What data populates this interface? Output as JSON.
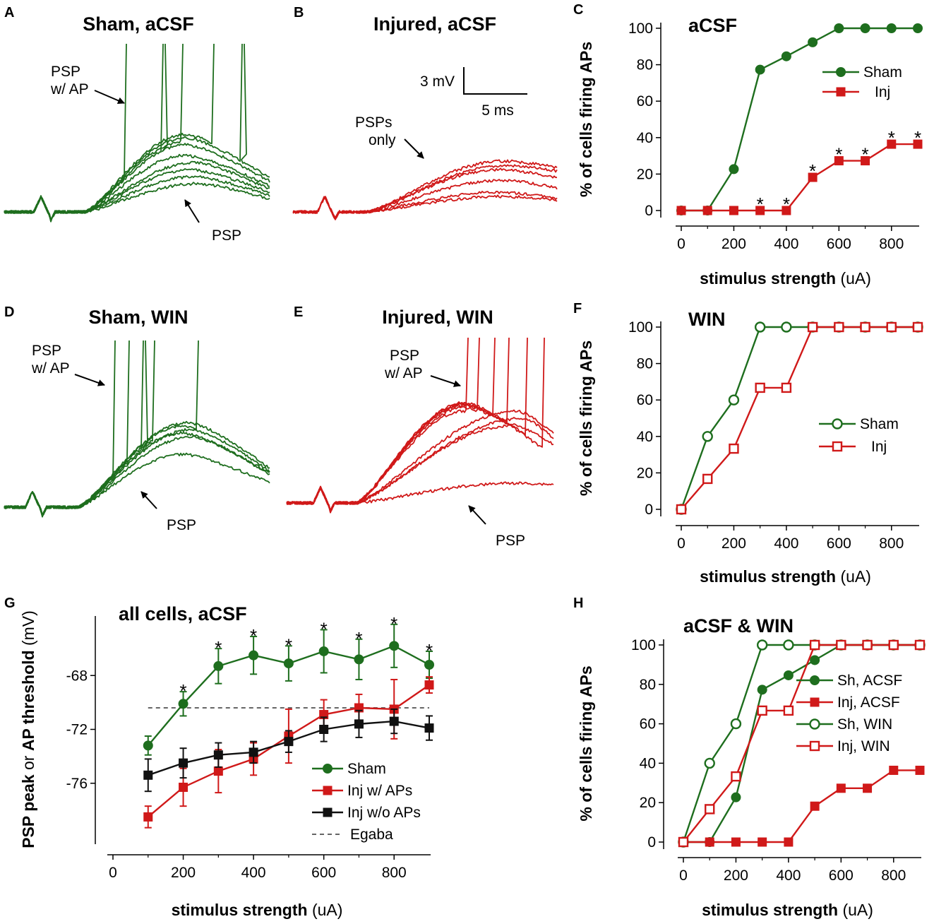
{
  "colors": {
    "sham": "#1e6e1e",
    "inj": "#d01919",
    "inj_no_ap": "#111111",
    "egaba": "#666666"
  },
  "chart_data": [
    {
      "id": "C",
      "type": "line",
      "panel_label": "C",
      "title": "aCSF",
      "xlabel_bold": "stimulus strength",
      "xlabel_unit": "(uA)",
      "ylabel": "% of cells firing APs",
      "xlim": [
        0,
        900
      ],
      "ylim": [
        0,
        100
      ],
      "xticks": [
        0,
        200,
        400,
        600,
        800
      ],
      "yticks": [
        0,
        20,
        40,
        60,
        80,
        100
      ],
      "x": [
        0,
        100,
        200,
        300,
        400,
        500,
        600,
        700,
        800,
        900
      ],
      "series": [
        {
          "name": "Sham",
          "color": "sham",
          "marker": "circle",
          "filled": true,
          "values": [
            0,
            0,
            22.7,
            77.3,
            84.6,
            92.3,
            100,
            100,
            100,
            100
          ]
        },
        {
          "name": "Inj",
          "color": "inj",
          "marker": "square",
          "filled": true,
          "values": [
            0,
            0,
            0,
            0,
            0,
            18.2,
            27.3,
            27.3,
            36.4,
            36.4
          ]
        }
      ],
      "annotations": [
        {
          "text": "*",
          "x": 300,
          "y": 0
        },
        {
          "text": "*",
          "x": 400,
          "y": 0
        },
        {
          "text": "*",
          "x": 500,
          "y": 18.2
        },
        {
          "text": "*",
          "x": 600,
          "y": 27.3
        },
        {
          "text": "*",
          "x": 700,
          "y": 27.3
        },
        {
          "text": "*",
          "x": 800,
          "y": 36.4
        },
        {
          "text": "*",
          "x": 900,
          "y": 36.4
        }
      ]
    },
    {
      "id": "F",
      "type": "line",
      "panel_label": "F",
      "title": "WIN",
      "xlabel_bold": "stimulus strength",
      "xlabel_unit": "(uA)",
      "ylabel": "% of cells firing APs",
      "xlim": [
        0,
        900
      ],
      "ylim": [
        0,
        100
      ],
      "xticks": [
        0,
        200,
        400,
        600,
        800
      ],
      "yticks": [
        0,
        20,
        40,
        60,
        80,
        100
      ],
      "x": [
        0,
        100,
        200,
        300,
        400,
        500,
        600,
        700,
        800,
        900
      ],
      "series": [
        {
          "name": "Sham",
          "color": "sham",
          "marker": "circle",
          "filled": false,
          "values": [
            0,
            40,
            60,
            100,
            100,
            100,
            100,
            100,
            100,
            100
          ]
        },
        {
          "name": "Inj",
          "color": "inj",
          "marker": "square",
          "filled": false,
          "values": [
            0,
            16.7,
            33.3,
            66.7,
            66.7,
            100,
            100,
            100,
            100,
            100
          ]
        }
      ]
    },
    {
      "id": "H",
      "type": "line",
      "panel_label": "H",
      "title": "aCSF & WIN",
      "xlabel_bold": "stimulus strength",
      "xlabel_unit": "(uA)",
      "ylabel": "% of cells firing APs",
      "xlim": [
        0,
        900
      ],
      "ylim": [
        0,
        100
      ],
      "xticks": [
        0,
        200,
        400,
        600,
        800
      ],
      "yticks": [
        0,
        20,
        40,
        60,
        80,
        100
      ],
      "x": [
        0,
        100,
        200,
        300,
        400,
        500,
        600,
        700,
        800,
        900
      ],
      "series": [
        {
          "name": "Sh, ACSF",
          "color": "sham",
          "marker": "circle",
          "filled": true,
          "values": [
            0,
            0,
            22.7,
            77.3,
            84.6,
            92.3,
            100,
            100,
            100,
            100
          ]
        },
        {
          "name": "Inj, ACSF",
          "color": "inj",
          "marker": "square",
          "filled": true,
          "values": [
            0,
            0,
            0,
            0,
            0,
            18.2,
            27.3,
            27.3,
            36.4,
            36.4
          ]
        },
        {
          "name": "Sh, WIN",
          "color": "sham",
          "marker": "circle",
          "filled": false,
          "values": [
            0,
            40,
            60,
            100,
            100,
            100,
            100,
            100,
            100,
            100
          ]
        },
        {
          "name": "Inj, WIN",
          "color": "inj",
          "marker": "square",
          "filled": false,
          "values": [
            0,
            16.7,
            33.3,
            66.7,
            66.7,
            100,
            100,
            100,
            100,
            100
          ]
        }
      ]
    },
    {
      "id": "G",
      "type": "line",
      "panel_label": "G",
      "title": "all cells, aCSF",
      "xlabel_bold": "stimulus strength",
      "xlabel_unit": "(uA)",
      "ylabel_parts": [
        "PSP peak",
        " or ",
        "AP threshold",
        " (mV)"
      ],
      "xlim": [
        0,
        900
      ],
      "ylim": [
        -80,
        -64
      ],
      "xticks": [
        0,
        200,
        400,
        600,
        800
      ],
      "yticks": [
        -76,
        -72,
        -68
      ],
      "x": [
        100,
        200,
        300,
        400,
        500,
        600,
        700,
        800,
        900
      ],
      "series": [
        {
          "name": "Sham",
          "color": "sham",
          "marker": "circle",
          "filled": true,
          "values": [
            -73.2,
            -70.1,
            -67.3,
            -66.5,
            -67.1,
            -66.2,
            -66.8,
            -65.8,
            -67.2
          ],
          "errors": [
            0.7,
            0.9,
            1.3,
            1.4,
            1.3,
            1.6,
            1.5,
            1.6,
            1.0
          ]
        },
        {
          "name": "Inj w/ APs",
          "color": "inj",
          "marker": "square",
          "filled": true,
          "values": [
            -78.5,
            -76.3,
            -75.1,
            -74.2,
            -72.5,
            -70.9,
            -70.4,
            -70.5,
            -68.7
          ],
          "errors": [
            0.8,
            1.4,
            1.6,
            1.2,
            2.0,
            1.1,
            1.0,
            2.2,
            0.6
          ]
        },
        {
          "name": "Inj w/o APs",
          "color": "inj_no_ap",
          "marker": "square",
          "filled": true,
          "values": [
            -75.4,
            -74.5,
            -73.9,
            -73.7,
            -72.9,
            -72.0,
            -71.6,
            -71.4,
            -71.9
          ],
          "errors": [
            1.2,
            1.1,
            0.9,
            0.8,
            0.8,
            0.9,
            1.0,
            0.9,
            0.9
          ]
        }
      ],
      "reference_line": {
        "name": "Egaba",
        "y": -70.4,
        "style": "dashed"
      },
      "annotations": [
        {
          "text": "*",
          "x": 200
        },
        {
          "text": "*",
          "x": 300
        },
        {
          "text": "*",
          "x": 400
        },
        {
          "text": "*",
          "x": 500
        },
        {
          "text": "*",
          "x": 600
        },
        {
          "text": "*",
          "x": 700
        },
        {
          "text": "*",
          "x": 800
        },
        {
          "text": "*",
          "x": 900
        }
      ]
    }
  ],
  "traces": [
    {
      "id": "A",
      "panel_label": "A",
      "title": "Sham, aCSF",
      "color": "sham",
      "annotations": [
        "PSP\nw/ AP",
        "PSP"
      ]
    },
    {
      "id": "B",
      "panel_label": "B",
      "title": "Injured, aCSF",
      "color": "inj",
      "annotations": [
        "PSPs\nonly"
      ],
      "scale_bar": {
        "voltage_label": "3 mV",
        "time_label": "5 ms"
      }
    },
    {
      "id": "D",
      "panel_label": "D",
      "title": "Sham, WIN",
      "color": "sham",
      "annotations": [
        "PSP\nw/ AP",
        "PSP"
      ]
    },
    {
      "id": "E",
      "panel_label": "E",
      "title": "Injured, WIN",
      "color": "inj",
      "annotations": [
        "PSP\nw/ AP",
        "PSP"
      ]
    }
  ]
}
